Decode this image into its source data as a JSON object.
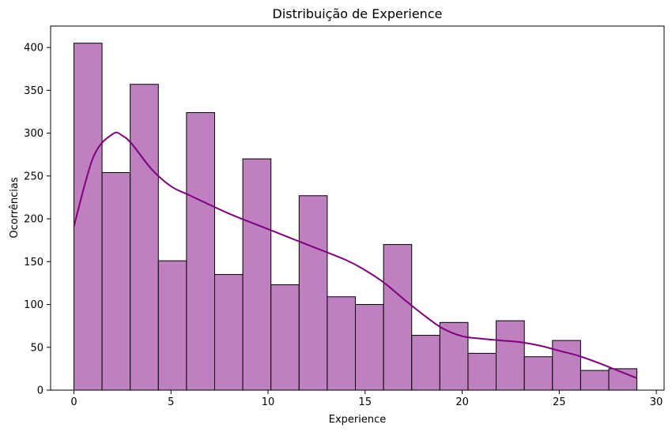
{
  "chart_data": {
    "type": "bar",
    "title": "Distribuição de Experience",
    "xlabel": "Experience",
    "ylabel": "Ocorrências",
    "xlim": [
      -1.2,
      30.4
    ],
    "ylim": [
      0,
      425
    ],
    "xticks": [
      0,
      5,
      10,
      15,
      20,
      25,
      30
    ],
    "yticks": [
      0,
      50,
      100,
      150,
      200,
      250,
      300,
      350,
      400
    ],
    "bin_edges": [
      0,
      1.45,
      2.9,
      4.35,
      5.8,
      7.25,
      8.7,
      10.15,
      11.6,
      13.05,
      14.5,
      15.95,
      17.4,
      18.85,
      20.3,
      21.75,
      23.2,
      24.65,
      26.1,
      27.55,
      29.0
    ],
    "values": [
      405,
      254,
      357,
      151,
      324,
      135,
      270,
      123,
      227,
      109,
      100,
      170,
      64,
      79,
      43,
      81,
      39,
      58,
      23,
      25
    ],
    "kde": {
      "x": [
        0,
        1,
        2,
        2.5,
        3,
        4,
        5,
        6,
        8,
        10,
        12,
        14,
        15,
        16,
        17,
        18,
        19,
        20,
        21,
        22,
        23,
        24,
        25,
        26,
        27,
        28,
        29
      ],
      "y": [
        191,
        272,
        299,
        297,
        287,
        258,
        238,
        227,
        206,
        188,
        170,
        152,
        140,
        125,
        106,
        88,
        72,
        63,
        60,
        58,
        56,
        52,
        46,
        40,
        32,
        23,
        14
      ]
    },
    "colors": {
      "bar_fill": "#bf80bf",
      "bar_edge": "#000000",
      "kde_line": "#800080"
    },
    "grid": false,
    "legend": "none"
  }
}
